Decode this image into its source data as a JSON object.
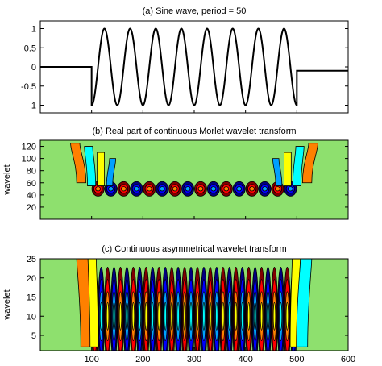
{
  "chart_data": [
    {
      "panel": "a",
      "type": "line",
      "title": "(a) Sine wave, period = 50",
      "xlabel": "",
      "ylabel": "",
      "xlim": [
        0,
        600
      ],
      "ylim": [
        -1.2,
        1.2
      ],
      "y_ticks": [
        "-1",
        "-0.5",
        "0",
        "0.5",
        "1"
      ],
      "y_tick_values": [
        -1,
        -0.5,
        0,
        0.5,
        1
      ],
      "series": [
        {
          "period": 50,
          "amplitude": 1,
          "segments": [
            {
              "x": [
                0,
                100
              ],
              "y": [
                0,
                0
              ]
            },
            {
              "x": [
                100,
                500
              ],
              "signal": "sine",
              "ramp_start_y": 0
            },
            {
              "x": [
                500,
                600
              ],
              "y": [
                -0.1,
                -0.1
              ]
            }
          ]
        }
      ]
    },
    {
      "panel": "b",
      "type": "heatmap",
      "title": "(b) Real part of continuous Morlet wavelet transform",
      "xlabel": "",
      "ylabel": "wavelet",
      "xlim": [
        0,
        600
      ],
      "ylim": [
        0,
        130
      ],
      "y_ticks": [
        "20",
        "40",
        "60",
        "80",
        "100",
        "120"
      ],
      "y_tick_values": [
        20,
        40,
        60,
        80,
        100,
        120
      ],
      "band_center": 50,
      "band_halfwidth": 12,
      "x_extent": [
        100,
        500
      ],
      "stripe_period": 50,
      "background_color": "#8ee06e"
    },
    {
      "panel": "c",
      "type": "heatmap",
      "title": "(c) Continuous asymmetrical wavelet transform",
      "xlabel": "",
      "ylabel": "wavelet",
      "xlim": [
        0,
        600
      ],
      "ylim": [
        1,
        25
      ],
      "y_ticks": [
        "5",
        "10",
        "15",
        "20",
        "25"
      ],
      "y_tick_values": [
        5,
        10,
        15,
        20,
        25
      ],
      "band_center": 10,
      "band_halfwidth": 8,
      "x_extent": [
        100,
        500
      ],
      "stripe_period": 25,
      "background_color": "#8ee06e",
      "x_ticks": [
        "100",
        "200",
        "300",
        "400",
        "500",
        "600"
      ],
      "x_tick_values": [
        100,
        200,
        300,
        400,
        500,
        600
      ]
    }
  ],
  "colormap": [
    "#00007f",
    "#0000ff",
    "#00a0ff",
    "#00ffff",
    "#8ee06e",
    "#ffff00",
    "#ff8000",
    "#ff0000",
    "#7f0000"
  ]
}
